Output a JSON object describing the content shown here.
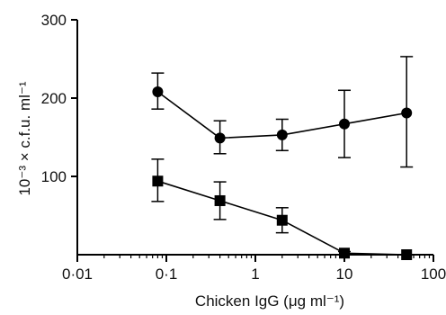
{
  "chart_data": {
    "type": "scatter",
    "title": "",
    "xlabel": "Chicken IgG (μg ml⁻¹)",
    "ylabel": "10⁻³ × c.f.u. ml⁻¹",
    "x_scale": "log",
    "xlim": [
      0.01,
      100
    ],
    "ylim": [
      0,
      300
    ],
    "x_ticks": [
      0.01,
      0.1,
      1,
      10,
      100
    ],
    "x_tick_labels": [
      "0·01",
      "0·1",
      "1",
      "10",
      "100"
    ],
    "y_ticks": [
      100,
      200,
      300
    ],
    "y_tick_labels": [
      "100",
      "200",
      "300"
    ],
    "grid": false,
    "legend": "none",
    "series": [
      {
        "marker": "circle",
        "color": "#000000",
        "points": [
          {
            "x": 0.08,
            "y": 208,
            "err_low": 186,
            "err_high": 232
          },
          {
            "x": 0.4,
            "y": 149,
            "err_low": 129,
            "err_high": 171
          },
          {
            "x": 2,
            "y": 153,
            "err_low": 133,
            "err_high": 173
          },
          {
            "x": 10,
            "y": 167,
            "err_low": 124,
            "err_high": 210
          },
          {
            "x": 50,
            "y": 181,
            "err_low": 112,
            "err_high": 253
          }
        ]
      },
      {
        "marker": "square",
        "color": "#000000",
        "points": [
          {
            "x": 0.08,
            "y": 94,
            "err_low": 68,
            "err_high": 122
          },
          {
            "x": 0.4,
            "y": 69,
            "err_low": 45,
            "err_high": 93
          },
          {
            "x": 2,
            "y": 44,
            "err_low": 28,
            "err_high": 60
          },
          {
            "x": 10,
            "y": 2,
            "err_low": 0,
            "err_high": 4
          },
          {
            "x": 50,
            "y": 0,
            "err_low": 0,
            "err_high": 0
          }
        ]
      }
    ]
  }
}
